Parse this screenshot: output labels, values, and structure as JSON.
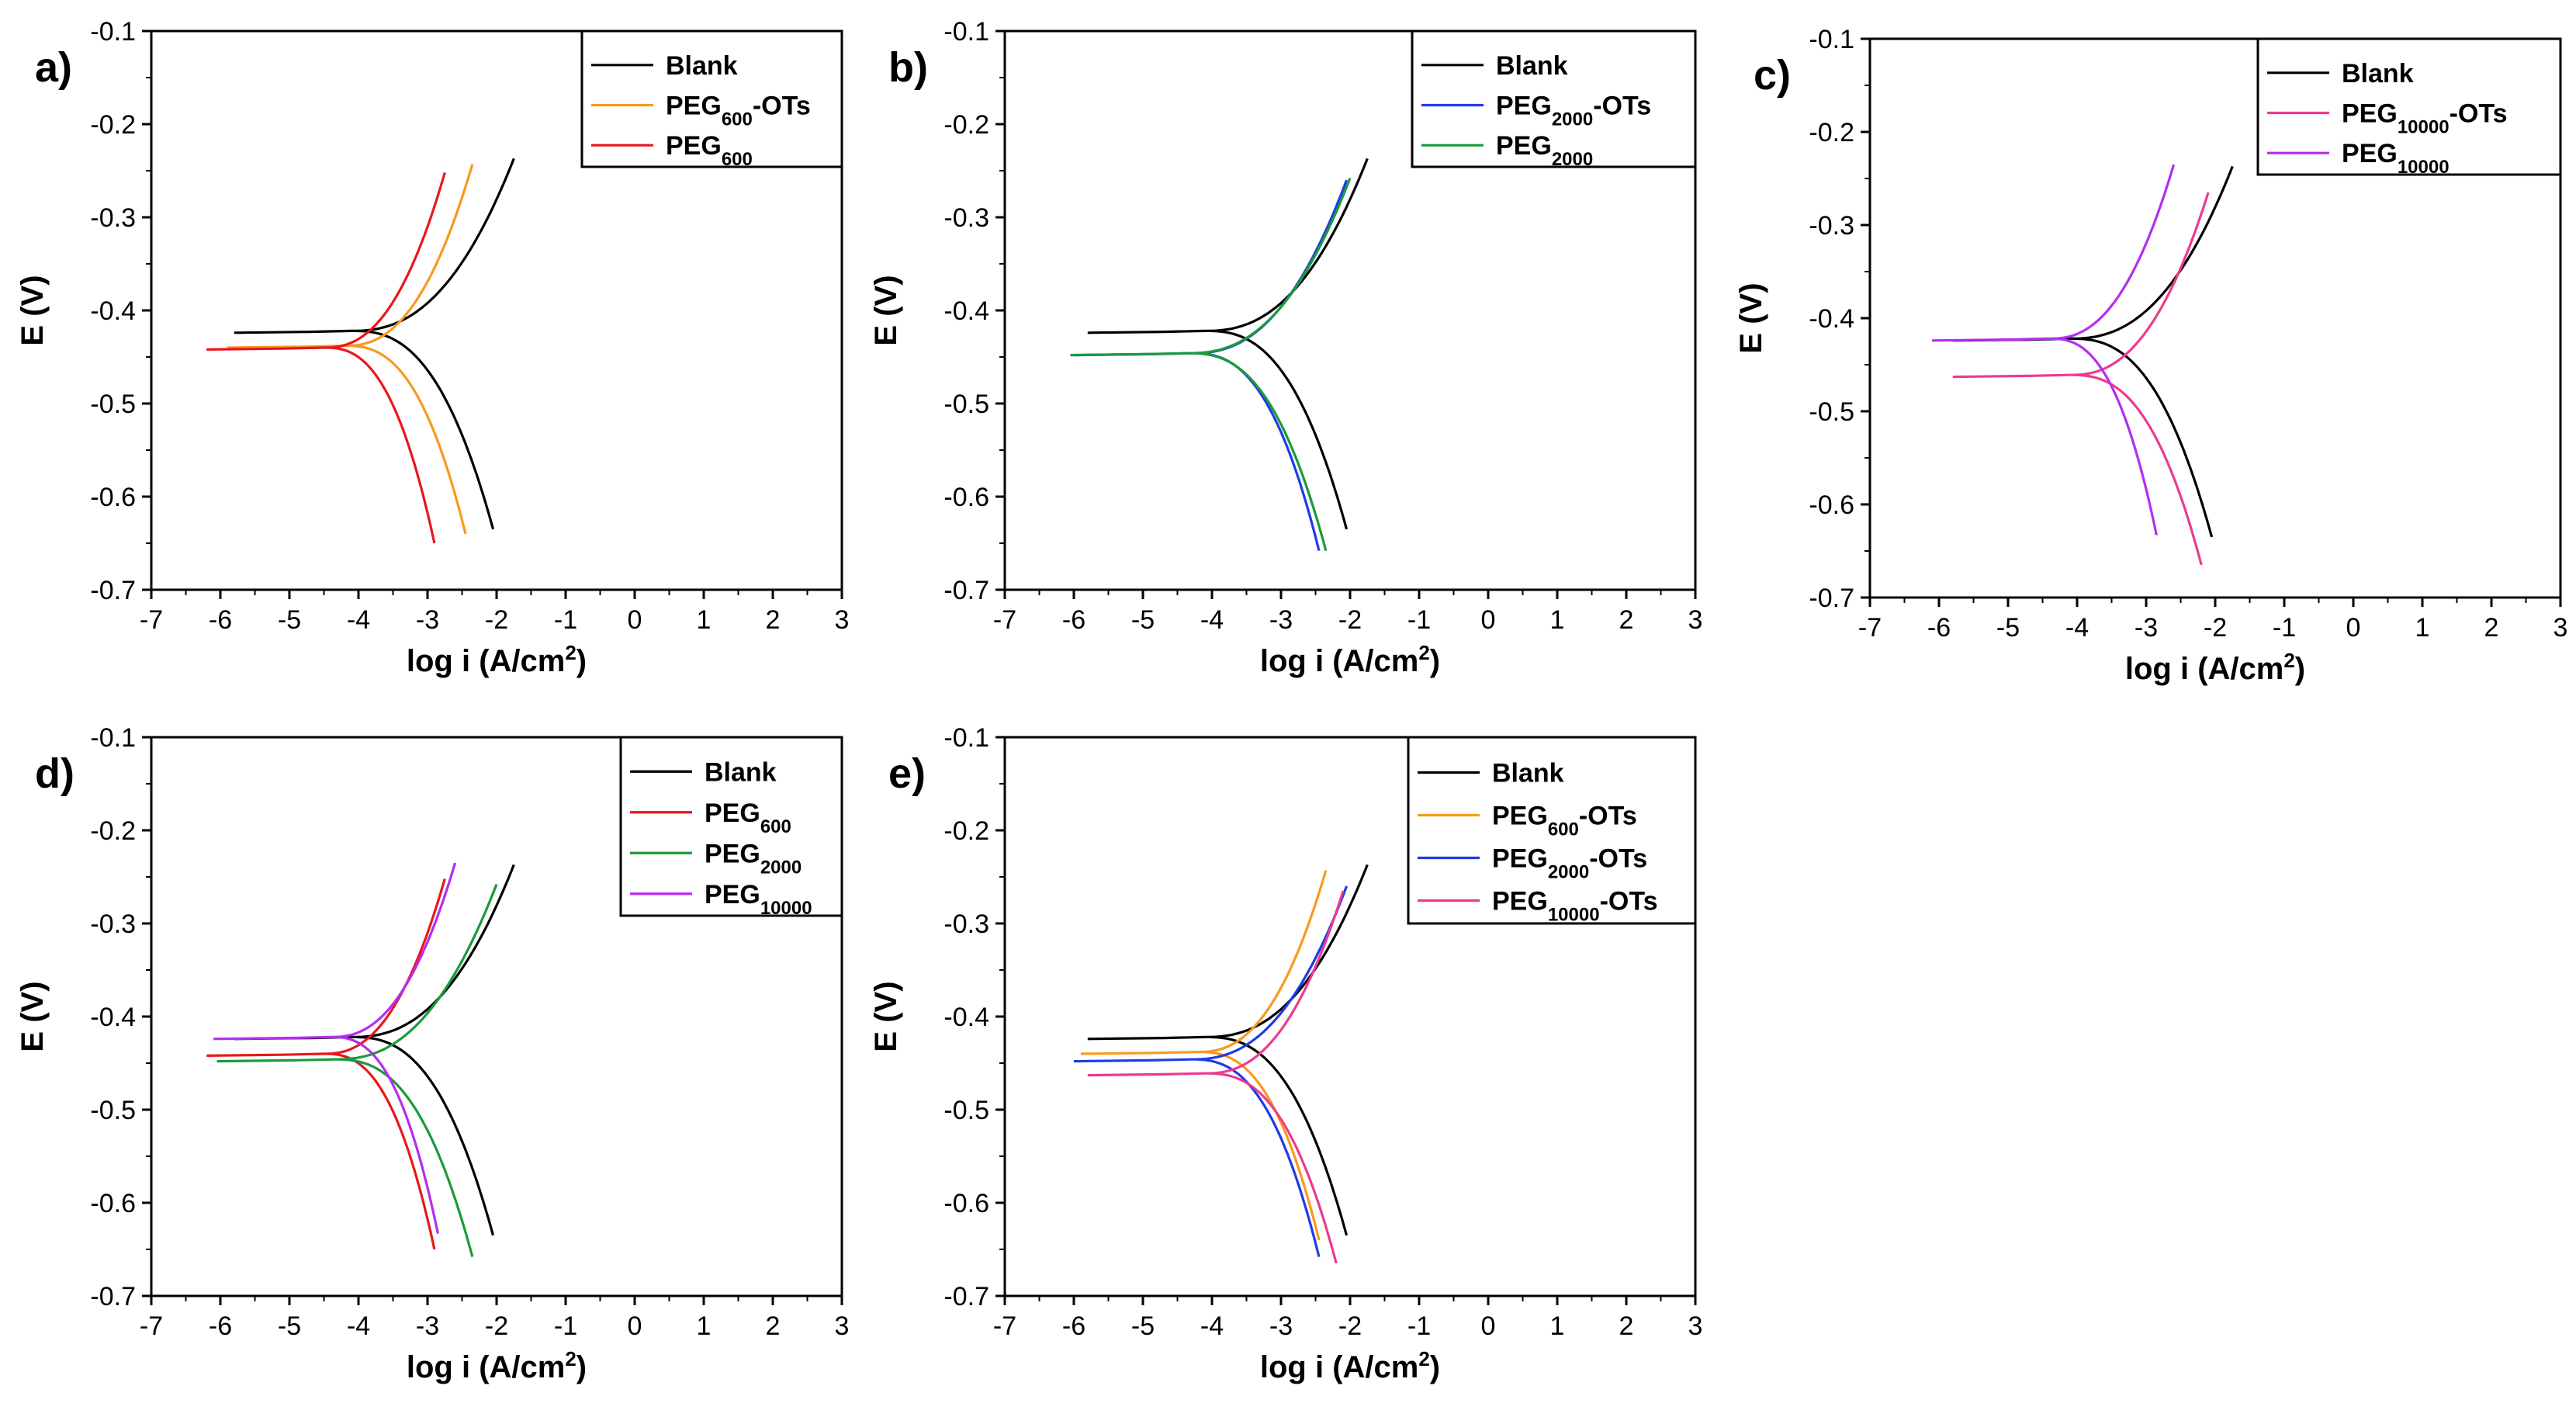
{
  "chart_data": [
    {
      "type": "line",
      "panel_label": "a)",
      "xlabel": "log i (A/cm",
      "xlabel_sup": "2",
      "xlabel_end": ")",
      "ylabel": "E (V)",
      "xlim": [
        -7,
        3
      ],
      "ylim": [
        -0.7,
        -0.1
      ],
      "xticks": [
        "-7",
        "-6",
        "-5",
        "-4",
        "-3",
        "-2",
        "-1",
        "0",
        "1",
        "2",
        "3"
      ],
      "yticks": [
        "-0.7",
        "-0.6",
        "-0.5",
        "-0.4",
        "-0.3",
        "-0.2",
        "-0.1"
      ],
      "legend_position": "top-right",
      "series": [
        {
          "name": "Blank",
          "base": "Blank",
          "sub": "",
          "suffix": "",
          "color": "#000000",
          "ecorr": -0.422,
          "icorr": -4.1,
          "cathodic_end": [
            -2.05,
            -0.635
          ],
          "anodic_end": [
            -1.75,
            -0.237
          ]
        },
        {
          "name": "PEG600-OTs",
          "base": "PEG",
          "sub": "600",
          "suffix": "-OTs",
          "color": "#f79a1e",
          "ecorr": -0.438,
          "icorr": -4.2,
          "cathodic_end": [
            -2.45,
            -0.64
          ],
          "anodic_end": [
            -2.35,
            -0.243
          ]
        },
        {
          "name": "PEG600",
          "base": "PEG",
          "sub": "600",
          "suffix": "",
          "color": "#e8171e",
          "ecorr": -0.44,
          "icorr": -4.5,
          "cathodic_end": [
            -2.9,
            -0.65
          ],
          "anodic_end": [
            -2.75,
            -0.252
          ]
        }
      ]
    },
    {
      "type": "line",
      "panel_label": "b)",
      "xlabel": "log i (A/cm",
      "xlabel_sup": "2",
      "xlabel_end": ")",
      "ylabel": "E (V)",
      "xlim": [
        -7,
        3
      ],
      "ylim": [
        -0.7,
        -0.1
      ],
      "xticks": [
        "-7",
        "-6",
        "-5",
        "-4",
        "-3",
        "-2",
        "-1",
        "0",
        "1",
        "2",
        "3"
      ],
      "yticks": [
        "-0.7",
        "-0.6",
        "-0.5",
        "-0.4",
        "-0.3",
        "-0.2",
        "-0.1"
      ],
      "legend_position": "top-right",
      "series": [
        {
          "name": "Blank",
          "base": "Blank",
          "sub": "",
          "suffix": "",
          "color": "#000000",
          "ecorr": -0.422,
          "icorr": -4.1,
          "cathodic_end": [
            -2.05,
            -0.635
          ],
          "anodic_end": [
            -1.75,
            -0.237
          ]
        },
        {
          "name": "PEG2000-OTs",
          "base": "PEG",
          "sub": "2000",
          "suffix": "-OTs",
          "color": "#1f3be8",
          "ecorr": -0.446,
          "icorr": -4.3,
          "cathodic_end": [
            -2.45,
            -0.658
          ],
          "anodic_end": [
            -2.05,
            -0.26
          ]
        },
        {
          "name": "PEG2000",
          "base": "PEG",
          "sub": "2000",
          "suffix": "",
          "color": "#1a9a3c",
          "ecorr": -0.446,
          "icorr": -4.35,
          "cathodic_end": [
            -2.35,
            -0.658
          ],
          "anodic_end": [
            -2.0,
            -0.258
          ]
        }
      ]
    },
    {
      "type": "line",
      "panel_label": "c)",
      "xlabel": "log i (A/cm",
      "xlabel_sup": "2",
      "xlabel_end": ")",
      "ylabel": "E (V)",
      "xlim": [
        -7,
        3
      ],
      "ylim": [
        -0.7,
        -0.1
      ],
      "xticks": [
        "-7",
        "-6",
        "-5",
        "-4",
        "-3",
        "-2",
        "-1",
        "0",
        "1",
        "2",
        "3"
      ],
      "yticks": [
        "-0.7",
        "-0.6",
        "-0.5",
        "-0.4",
        "-0.3",
        "-0.2",
        "-0.1"
      ],
      "legend_position": "top-right",
      "series": [
        {
          "name": "Blank",
          "base": "Blank",
          "sub": "",
          "suffix": "",
          "color": "#000000",
          "ecorr": -0.422,
          "icorr": -4.1,
          "cathodic_end": [
            -2.05,
            -0.635
          ],
          "anodic_end": [
            -1.75,
            -0.237
          ]
        },
        {
          "name": "PEG10000-OTs",
          "base": "PEG",
          "sub": "10000",
          "suffix": "-OTs",
          "color": "#ec3b8e",
          "ecorr": -0.461,
          "icorr": -4.1,
          "cathodic_end": [
            -2.2,
            -0.665
          ],
          "anodic_end": [
            -2.1,
            -0.265
          ]
        },
        {
          "name": "PEG10000",
          "base": "PEG",
          "sub": "10000",
          "suffix": "",
          "color": "#b42ef0",
          "ecorr": -0.422,
          "icorr": -4.4,
          "cathodic_end": [
            -2.85,
            -0.633
          ],
          "anodic_end": [
            -2.6,
            -0.235
          ]
        }
      ]
    },
    {
      "type": "line",
      "panel_label": "d)",
      "xlabel": "log i (A/cm",
      "xlabel_sup": "2",
      "xlabel_end": ")",
      "ylabel": "E (V)",
      "xlim": [
        -7,
        3
      ],
      "ylim": [
        -0.7,
        -0.1
      ],
      "xticks": [
        "-7",
        "-6",
        "-5",
        "-4",
        "-3",
        "-2",
        "-1",
        "0",
        "1",
        "2",
        "3"
      ],
      "yticks": [
        "-0.7",
        "-0.6",
        "-0.5",
        "-0.4",
        "-0.3",
        "-0.2",
        "-0.1"
      ],
      "legend_position": "top-right",
      "series": [
        {
          "name": "Blank",
          "base": "Blank",
          "sub": "",
          "suffix": "",
          "color": "#000000",
          "ecorr": -0.422,
          "icorr": -4.1,
          "cathodic_end": [
            -2.05,
            -0.635
          ],
          "anodic_end": [
            -1.75,
            -0.237
          ]
        },
        {
          "name": "PEG600",
          "base": "PEG",
          "sub": "600",
          "suffix": "",
          "color": "#e8171e",
          "ecorr": -0.44,
          "icorr": -4.5,
          "cathodic_end": [
            -2.9,
            -0.65
          ],
          "anodic_end": [
            -2.75,
            -0.252
          ]
        },
        {
          "name": "PEG2000",
          "base": "PEG",
          "sub": "2000",
          "suffix": "",
          "color": "#1a9a3c",
          "ecorr": -0.446,
          "icorr": -4.35,
          "cathodic_end": [
            -2.35,
            -0.658
          ],
          "anodic_end": [
            -2.0,
            -0.258
          ]
        },
        {
          "name": "PEG10000",
          "base": "PEG",
          "sub": "10000",
          "suffix": "",
          "color": "#b42ef0",
          "ecorr": -0.422,
          "icorr": -4.4,
          "cathodic_end": [
            -2.85,
            -0.633
          ],
          "anodic_end": [
            -2.6,
            -0.235
          ]
        }
      ]
    },
    {
      "type": "line",
      "panel_label": "e)",
      "xlabel": "log i (A/cm",
      "xlabel_sup": "2",
      "xlabel_end": ")",
      "ylabel": "E (V)",
      "xlim": [
        -7,
        3
      ],
      "ylim": [
        -0.7,
        -0.1
      ],
      "xticks": [
        "-7",
        "-6",
        "-5",
        "-4",
        "-3",
        "-2",
        "-1",
        "0",
        "1",
        "2",
        "3"
      ],
      "yticks": [
        "-0.7",
        "-0.6",
        "-0.5",
        "-0.4",
        "-0.3",
        "-0.2",
        "-0.1"
      ],
      "legend_position": "top-right",
      "series": [
        {
          "name": "Blank",
          "base": "Blank",
          "sub": "",
          "suffix": "",
          "color": "#000000",
          "ecorr": -0.422,
          "icorr": -4.1,
          "cathodic_end": [
            -2.05,
            -0.635
          ],
          "anodic_end": [
            -1.75,
            -0.237
          ]
        },
        {
          "name": "PEG600-OTs",
          "base": "PEG",
          "sub": "600",
          "suffix": "-OTs",
          "color": "#f79a1e",
          "ecorr": -0.438,
          "icorr": -4.2,
          "cathodic_end": [
            -2.45,
            -0.64
          ],
          "anodic_end": [
            -2.35,
            -0.243
          ]
        },
        {
          "name": "PEG2000-OTs",
          "base": "PEG",
          "sub": "2000",
          "suffix": "-OTs",
          "color": "#1f3be8",
          "ecorr": -0.446,
          "icorr": -4.3,
          "cathodic_end": [
            -2.45,
            -0.658
          ],
          "anodic_end": [
            -2.05,
            -0.26
          ]
        },
        {
          "name": "PEG10000-OTs",
          "base": "PEG",
          "sub": "10000",
          "suffix": "-OTs",
          "color": "#ec3b8e",
          "ecorr": -0.461,
          "icorr": -4.1,
          "cathodic_end": [
            -2.2,
            -0.665
          ],
          "anodic_end": [
            -2.1,
            -0.265
          ]
        }
      ]
    }
  ]
}
